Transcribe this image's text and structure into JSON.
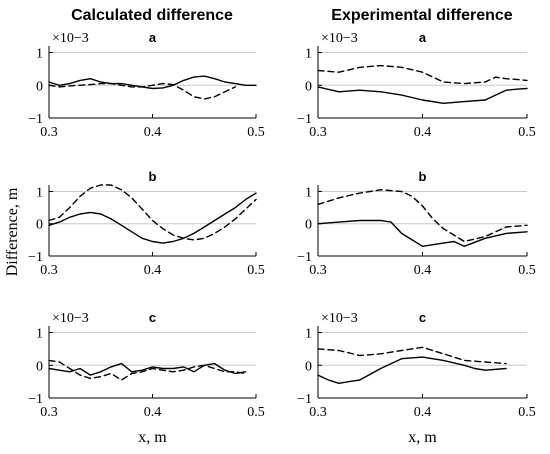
{
  "figure": {
    "ylabel": "Difference, m",
    "column_titles": [
      "Calculated difference",
      "Experimental difference"
    ]
  },
  "chart_data": [
    {
      "type": "line",
      "title": "a",
      "column": "Calculated difference",
      "xlabel": "",
      "ylabel": "Difference, m",
      "y_scale_note": "×10−3",
      "xlim": [
        0.3,
        0.5
      ],
      "ylim": [
        -1,
        1.2
      ],
      "xticks": [
        "0.3",
        "0.4",
        "0.5"
      ],
      "yticks": [
        "−1",
        "0",
        "1"
      ],
      "grid": "horizontal",
      "series": [
        {
          "style": "solid",
          "x": [
            0.3,
            0.31,
            0.32,
            0.33,
            0.34,
            0.35,
            0.36,
            0.37,
            0.38,
            0.39,
            0.4,
            0.41,
            0.42,
            0.43,
            0.44,
            0.45,
            0.46,
            0.47,
            0.48,
            0.49,
            0.5
          ],
          "y": [
            0.1,
            0.0,
            0.05,
            0.15,
            0.2,
            0.1,
            0.05,
            0.05,
            0.0,
            -0.05,
            -0.1,
            -0.08,
            0.0,
            0.15,
            0.25,
            0.28,
            0.2,
            0.1,
            0.05,
            0.0,
            0.0
          ]
        },
        {
          "style": "dashed",
          "x": [
            0.3,
            0.31,
            0.32,
            0.33,
            0.34,
            0.35,
            0.36,
            0.37,
            0.38,
            0.39,
            0.4,
            0.41,
            0.42,
            0.43,
            0.44,
            0.45,
            0.46,
            0.47,
            0.48
          ],
          "y": [
            0.0,
            -0.05,
            -0.02,
            0.0,
            0.02,
            0.05,
            0.05,
            0.0,
            -0.05,
            -0.05,
            0.0,
            0.05,
            0.02,
            -0.15,
            -0.35,
            -0.42,
            -0.35,
            -0.2,
            -0.05
          ]
        }
      ]
    },
    {
      "type": "line",
      "title": "a",
      "column": "Experimental difference",
      "xlabel": "",
      "ylabel": "",
      "y_scale_note": "×10−3",
      "xlim": [
        0.3,
        0.5
      ],
      "ylim": [
        -1,
        1.2
      ],
      "xticks": [
        "0.3",
        "0.4",
        "0.5"
      ],
      "yticks": [
        "−1",
        "0",
        "1"
      ],
      "grid": "horizontal",
      "series": [
        {
          "style": "solid",
          "x": [
            0.3,
            0.32,
            0.34,
            0.36,
            0.38,
            0.4,
            0.42,
            0.44,
            0.46,
            0.47,
            0.48,
            0.49,
            0.5
          ],
          "y": [
            -0.05,
            -0.2,
            -0.15,
            -0.2,
            -0.3,
            -0.45,
            -0.55,
            -0.5,
            -0.45,
            -0.3,
            -0.15,
            -0.12,
            -0.1
          ]
        },
        {
          "style": "dashed",
          "x": [
            0.3,
            0.32,
            0.34,
            0.36,
            0.38,
            0.4,
            0.42,
            0.44,
            0.46,
            0.47,
            0.48,
            0.49,
            0.5
          ],
          "y": [
            0.45,
            0.4,
            0.55,
            0.6,
            0.55,
            0.4,
            0.1,
            0.05,
            0.1,
            0.25,
            0.2,
            0.18,
            0.15
          ]
        }
      ]
    },
    {
      "type": "line",
      "title": "b",
      "column": "Calculated difference",
      "xlabel": "",
      "ylabel": "Difference, m",
      "y_scale_note": "",
      "xlim": [
        0.3,
        0.5
      ],
      "ylim": [
        -1,
        1.2
      ],
      "xticks": [
        "0.3",
        "0.4",
        "0.5"
      ],
      "yticks": [
        "−1",
        "0",
        "1"
      ],
      "grid": "horizontal",
      "series": [
        {
          "style": "solid",
          "x": [
            0.3,
            0.31,
            0.32,
            0.33,
            0.34,
            0.35,
            0.36,
            0.37,
            0.38,
            0.39,
            0.4,
            0.41,
            0.42,
            0.43,
            0.44,
            0.45,
            0.46,
            0.47,
            0.48,
            0.49,
            0.5
          ],
          "y": [
            -0.05,
            0.05,
            0.2,
            0.3,
            0.35,
            0.3,
            0.15,
            -0.05,
            -0.25,
            -0.45,
            -0.55,
            -0.6,
            -0.55,
            -0.45,
            -0.3,
            -0.1,
            0.1,
            0.3,
            0.5,
            0.75,
            0.95
          ]
        },
        {
          "style": "dashed",
          "x": [
            0.3,
            0.31,
            0.32,
            0.33,
            0.34,
            0.35,
            0.36,
            0.37,
            0.38,
            0.39,
            0.4,
            0.41,
            0.42,
            0.43,
            0.44,
            0.45,
            0.46,
            0.47,
            0.48,
            0.49,
            0.5
          ],
          "y": [
            0.1,
            0.2,
            0.5,
            0.85,
            1.1,
            1.2,
            1.2,
            1.05,
            0.8,
            0.45,
            0.1,
            -0.15,
            -0.35,
            -0.45,
            -0.5,
            -0.45,
            -0.3,
            -0.1,
            0.15,
            0.45,
            0.75
          ]
        }
      ]
    },
    {
      "type": "line",
      "title": "b",
      "column": "Experimental difference",
      "xlabel": "",
      "ylabel": "",
      "y_scale_note": "",
      "xlim": [
        0.3,
        0.5
      ],
      "ylim": [
        -1,
        1.2
      ],
      "xticks": [
        "0.3",
        "0.4",
        "0.5"
      ],
      "yticks": [
        "−1",
        "0",
        "1"
      ],
      "grid": "horizontal",
      "series": [
        {
          "style": "solid",
          "x": [
            0.3,
            0.32,
            0.34,
            0.36,
            0.37,
            0.38,
            0.4,
            0.42,
            0.43,
            0.44,
            0.46,
            0.48,
            0.5
          ],
          "y": [
            0.0,
            0.05,
            0.1,
            0.1,
            0.05,
            -0.3,
            -0.7,
            -0.6,
            -0.55,
            -0.7,
            -0.45,
            -0.3,
            -0.25
          ]
        },
        {
          "style": "dashed",
          "x": [
            0.3,
            0.32,
            0.34,
            0.36,
            0.38,
            0.39,
            0.4,
            0.41,
            0.42,
            0.44,
            0.46,
            0.48,
            0.5
          ],
          "y": [
            0.6,
            0.8,
            0.95,
            1.05,
            1.0,
            0.85,
            0.55,
            0.15,
            -0.15,
            -0.55,
            -0.4,
            -0.1,
            -0.05
          ]
        }
      ]
    },
    {
      "type": "line",
      "title": "c",
      "column": "Calculated difference",
      "xlabel": "x, m",
      "ylabel": "Difference, m",
      "y_scale_note": "×10−3",
      "xlim": [
        0.3,
        0.5
      ],
      "ylim": [
        -1,
        1.2
      ],
      "xticks": [
        "0.3",
        "0.4",
        "0.5"
      ],
      "yticks": [
        "−1",
        "0",
        "1"
      ],
      "grid": "horizontal",
      "series": [
        {
          "style": "solid",
          "x": [
            0.3,
            0.31,
            0.32,
            0.33,
            0.34,
            0.35,
            0.36,
            0.37,
            0.38,
            0.39,
            0.4,
            0.41,
            0.42,
            0.43,
            0.44,
            0.45,
            0.46,
            0.47,
            0.48,
            0.49
          ],
          "y": [
            -0.1,
            -0.15,
            -0.2,
            -0.1,
            -0.3,
            -0.2,
            -0.05,
            0.05,
            -0.2,
            -0.15,
            -0.05,
            -0.1,
            -0.1,
            -0.05,
            -0.2,
            0.0,
            0.05,
            -0.15,
            -0.25,
            -0.2
          ]
        },
        {
          "style": "dashed",
          "x": [
            0.3,
            0.31,
            0.32,
            0.33,
            0.34,
            0.35,
            0.36,
            0.37,
            0.38,
            0.39,
            0.4,
            0.41,
            0.42,
            0.43,
            0.44,
            0.45,
            0.46,
            0.47,
            0.48,
            0.49
          ],
          "y": [
            0.15,
            0.1,
            -0.1,
            -0.3,
            -0.4,
            -0.35,
            -0.25,
            -0.45,
            -0.25,
            -0.2,
            -0.1,
            -0.15,
            -0.2,
            -0.15,
            -0.05,
            0.0,
            -0.1,
            -0.2,
            -0.2,
            -0.25
          ]
        }
      ]
    },
    {
      "type": "line",
      "title": "c",
      "column": "Experimental difference",
      "xlabel": "x, m",
      "ylabel": "",
      "y_scale_note": "×10−3",
      "xlim": [
        0.3,
        0.5
      ],
      "ylim": [
        -1,
        1.2
      ],
      "xticks": [
        "0.3",
        "0.4",
        "0.5"
      ],
      "yticks": [
        "−1",
        "0",
        "1"
      ],
      "grid": "horizontal",
      "series": [
        {
          "style": "solid",
          "x": [
            0.3,
            0.31,
            0.32,
            0.33,
            0.34,
            0.36,
            0.38,
            0.4,
            0.42,
            0.44,
            0.45,
            0.46,
            0.48
          ],
          "y": [
            -0.3,
            -0.45,
            -0.55,
            -0.5,
            -0.45,
            -0.1,
            0.2,
            0.25,
            0.15,
            0.0,
            -0.1,
            -0.15,
            -0.1
          ]
        },
        {
          "style": "dashed",
          "x": [
            0.3,
            0.32,
            0.34,
            0.36,
            0.38,
            0.4,
            0.42,
            0.44,
            0.46,
            0.48
          ],
          "y": [
            0.5,
            0.45,
            0.3,
            0.35,
            0.45,
            0.55,
            0.35,
            0.15,
            0.1,
            0.05
          ]
        }
      ]
    }
  ]
}
